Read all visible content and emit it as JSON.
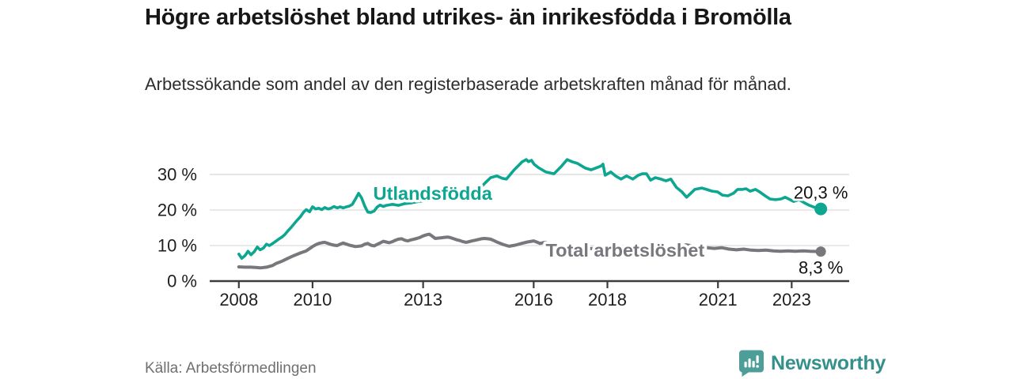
{
  "header": {
    "title": "Högre arbetslöshet bland utrikes- än inrikesfödda i Bromölla",
    "subtitle": "Arbetssökande som andel av den registerbaserade arbetskraften månad för månad."
  },
  "footer": {
    "source": "Källa: Arbetsförmedlingen",
    "brand": "Newsworthy"
  },
  "colors": {
    "accent_teal": "#0da691",
    "line_gray": "#77777c",
    "grid": "#dcdcdc",
    "axis": "#3c3c3c",
    "tick_text": "#1f1f1f",
    "value_label": "#111111",
    "brand_icon_teal": "#4d9e99",
    "brand_text_teal": "#35908c"
  },
  "chart_data": {
    "type": "line",
    "unit": "%",
    "x_range": [
      2007.21,
      2024.56
    ],
    "y_range": [
      0,
      37.1
    ],
    "grid": true,
    "legend_position": "inline-labels",
    "y_ticks": [
      {
        "value": 0,
        "label": "0 %"
      },
      {
        "value": 10,
        "label": "10 %"
      },
      {
        "value": 20,
        "label": "20 %"
      },
      {
        "value": 30,
        "label": "30 %"
      }
    ],
    "x_ticks": [
      {
        "value": 2008,
        "label": "2008"
      },
      {
        "value": 2010,
        "label": "2010"
      },
      {
        "value": 2013,
        "label": "2013"
      },
      {
        "value": 2016,
        "label": "2016"
      },
      {
        "value": 2018,
        "label": "2018"
      },
      {
        "value": 2021,
        "label": "2021"
      },
      {
        "value": 2023,
        "label": "2023"
      }
    ],
    "series": [
      {
        "name": "Utlandsfödda",
        "color": "#0da691",
        "stroke_width": 3.6,
        "end_label": "20,3 %",
        "end_label_side": "above",
        "label_pos": [
          2013.26,
          22.9
        ],
        "points": [
          [
            2008.0,
            7.6
          ],
          [
            2008.08,
            6.4
          ],
          [
            2008.17,
            7.2
          ],
          [
            2008.25,
            8.4
          ],
          [
            2008.33,
            7.4
          ],
          [
            2008.42,
            8.3
          ],
          [
            2008.5,
            9.6
          ],
          [
            2008.58,
            8.8
          ],
          [
            2008.67,
            9.3
          ],
          [
            2008.75,
            10.4
          ],
          [
            2008.83,
            10.0
          ],
          [
            2008.92,
            10.6
          ],
          [
            2009.0,
            11.2
          ],
          [
            2009.08,
            11.8
          ],
          [
            2009.17,
            12.4
          ],
          [
            2009.25,
            13.1
          ],
          [
            2009.33,
            14.1
          ],
          [
            2009.42,
            15.1
          ],
          [
            2009.5,
            16.1
          ],
          [
            2009.58,
            17.1
          ],
          [
            2009.67,
            18.1
          ],
          [
            2009.75,
            19.3
          ],
          [
            2009.83,
            20.1
          ],
          [
            2009.92,
            19.5
          ],
          [
            2010.0,
            20.9
          ],
          [
            2010.08,
            20.3
          ],
          [
            2010.17,
            20.5
          ],
          [
            2010.25,
            20.1
          ],
          [
            2010.33,
            20.7
          ],
          [
            2010.42,
            20.3
          ],
          [
            2010.5,
            20.5
          ],
          [
            2010.58,
            21.0
          ],
          [
            2010.67,
            20.6
          ],
          [
            2010.75,
            20.9
          ],
          [
            2010.83,
            20.6
          ],
          [
            2010.92,
            20.9
          ],
          [
            2011.0,
            21.1
          ],
          [
            2011.08,
            21.6
          ],
          [
            2011.17,
            23.2
          ],
          [
            2011.25,
            24.7
          ],
          [
            2011.33,
            23.4
          ],
          [
            2011.42,
            21.0
          ],
          [
            2011.5,
            19.4
          ],
          [
            2011.58,
            19.3
          ],
          [
            2011.67,
            19.7
          ],
          [
            2011.75,
            20.8
          ],
          [
            2011.83,
            21.4
          ],
          [
            2011.92,
            21.0
          ],
          [
            2012.0,
            21.3
          ],
          [
            2012.17,
            21.6
          ],
          [
            2012.33,
            21.3
          ],
          [
            2012.5,
            21.8
          ],
          [
            2012.67,
            22.0
          ],
          [
            2012.83,
            22.3
          ],
          [
            2013.0,
            22.6
          ],
          [
            2013.25,
            22.9
          ],
          [
            2013.5,
            23.3
          ],
          [
            2013.75,
            23.9
          ],
          [
            2014.0,
            24.4
          ],
          [
            2014.25,
            24.9
          ],
          [
            2014.55,
            26.2
          ],
          [
            2014.7,
            27.8
          ],
          [
            2014.83,
            29.1
          ],
          [
            2015.0,
            29.6
          ],
          [
            2015.15,
            28.9
          ],
          [
            2015.26,
            28.7
          ],
          [
            2015.47,
            31.3
          ],
          [
            2015.69,
            33.6
          ],
          [
            2015.8,
            34.2
          ],
          [
            2015.86,
            33.6
          ],
          [
            2015.94,
            34.0
          ],
          [
            2016.01,
            32.9
          ],
          [
            2016.12,
            32.0
          ],
          [
            2016.33,
            30.7
          ],
          [
            2016.55,
            30.2
          ],
          [
            2016.76,
            32.4
          ],
          [
            2016.91,
            34.2
          ],
          [
            2017.04,
            33.6
          ],
          [
            2017.19,
            33.1
          ],
          [
            2017.4,
            31.8
          ],
          [
            2017.56,
            31.3
          ],
          [
            2017.68,
            31.8
          ],
          [
            2017.83,
            32.4
          ],
          [
            2017.88,
            32.9
          ],
          [
            2017.94,
            29.8
          ],
          [
            2018.09,
            30.7
          ],
          [
            2018.22,
            29.6
          ],
          [
            2018.37,
            28.7
          ],
          [
            2018.52,
            29.6
          ],
          [
            2018.69,
            28.7
          ],
          [
            2018.84,
            29.8
          ],
          [
            2018.95,
            30.2
          ],
          [
            2019.06,
            30.2
          ],
          [
            2019.17,
            28.4
          ],
          [
            2019.3,
            29.1
          ],
          [
            2019.45,
            28.7
          ],
          [
            2019.59,
            28.2
          ],
          [
            2019.72,
            28.7
          ],
          [
            2019.87,
            26.4
          ],
          [
            2020.02,
            25.1
          ],
          [
            2020.15,
            23.6
          ],
          [
            2020.37,
            25.8
          ],
          [
            2020.56,
            26.2
          ],
          [
            2020.69,
            25.8
          ],
          [
            2020.84,
            25.3
          ],
          [
            2020.99,
            25.1
          ],
          [
            2021.12,
            24.2
          ],
          [
            2021.27,
            24.0
          ],
          [
            2021.42,
            24.7
          ],
          [
            2021.53,
            25.8
          ],
          [
            2021.66,
            25.8
          ],
          [
            2021.76,
            26.0
          ],
          [
            2021.87,
            25.3
          ],
          [
            2022.02,
            25.8
          ],
          [
            2022.13,
            25.1
          ],
          [
            2022.28,
            24.0
          ],
          [
            2022.41,
            23.1
          ],
          [
            2022.56,
            22.9
          ],
          [
            2022.71,
            23.1
          ],
          [
            2022.82,
            23.6
          ],
          [
            2022.92,
            23.1
          ],
          [
            2023.05,
            22.4
          ],
          [
            2023.2,
            22.9
          ],
          [
            2023.35,
            22.0
          ],
          [
            2023.48,
            21.3
          ],
          [
            2023.63,
            20.7
          ],
          [
            2023.79,
            20.3
          ]
        ]
      },
      {
        "name": "Total arbetslöshet",
        "color": "#77777c",
        "stroke_width": 4,
        "end_label": "8,3 %",
        "end_label_side": "below",
        "label_pos": [
          2018.48,
          6.9
        ],
        "points": [
          [
            2008.0,
            4.0
          ],
          [
            2008.17,
            3.9
          ],
          [
            2008.33,
            3.9
          ],
          [
            2008.5,
            3.8
          ],
          [
            2008.58,
            3.7
          ],
          [
            2008.75,
            3.9
          ],
          [
            2008.92,
            4.4
          ],
          [
            2009.0,
            4.9
          ],
          [
            2009.17,
            5.6
          ],
          [
            2009.33,
            6.4
          ],
          [
            2009.5,
            7.2
          ],
          [
            2009.67,
            7.9
          ],
          [
            2009.83,
            8.5
          ],
          [
            2010.0,
            9.7
          ],
          [
            2010.08,
            10.2
          ],
          [
            2010.17,
            10.6
          ],
          [
            2010.25,
            10.8
          ],
          [
            2010.33,
            10.9
          ],
          [
            2010.42,
            10.6
          ],
          [
            2010.5,
            10.3
          ],
          [
            2010.58,
            10.1
          ],
          [
            2010.67,
            10.0
          ],
          [
            2010.75,
            10.4
          ],
          [
            2010.83,
            10.7
          ],
          [
            2010.92,
            10.4
          ],
          [
            2011.0,
            10.1
          ],
          [
            2011.17,
            9.7
          ],
          [
            2011.33,
            9.9
          ],
          [
            2011.42,
            10.4
          ],
          [
            2011.5,
            10.6
          ],
          [
            2011.58,
            10.1
          ],
          [
            2011.67,
            9.9
          ],
          [
            2011.75,
            10.3
          ],
          [
            2011.83,
            10.7
          ],
          [
            2011.92,
            11.2
          ],
          [
            2012.0,
            11.0
          ],
          [
            2012.08,
            10.8
          ],
          [
            2012.17,
            11.1
          ],
          [
            2012.25,
            11.5
          ],
          [
            2012.33,
            11.8
          ],
          [
            2012.42,
            11.9
          ],
          [
            2012.5,
            11.5
          ],
          [
            2012.58,
            11.3
          ],
          [
            2012.67,
            11.6
          ],
          [
            2012.75,
            11.8
          ],
          [
            2012.83,
            12.0
          ],
          [
            2012.92,
            12.3
          ],
          [
            2013.0,
            12.7
          ],
          [
            2013.08,
            13.0
          ],
          [
            2013.17,
            13.2
          ],
          [
            2013.25,
            12.6
          ],
          [
            2013.33,
            12.0
          ],
          [
            2013.42,
            12.1
          ],
          [
            2013.5,
            12.2
          ],
          [
            2013.58,
            12.3
          ],
          [
            2013.67,
            12.4
          ],
          [
            2013.75,
            12.2
          ],
          [
            2013.83,
            11.9
          ],
          [
            2013.92,
            11.6
          ],
          [
            2014.0,
            11.4
          ],
          [
            2014.08,
            11.1
          ],
          [
            2014.17,
            10.9
          ],
          [
            2014.25,
            11.1
          ],
          [
            2014.33,
            11.3
          ],
          [
            2014.42,
            11.5
          ],
          [
            2014.5,
            11.7
          ],
          [
            2014.58,
            11.9
          ],
          [
            2014.67,
            12.0
          ],
          [
            2014.75,
            11.9
          ],
          [
            2014.83,
            11.8
          ],
          [
            2014.92,
            11.4
          ],
          [
            2015.0,
            11.0
          ],
          [
            2015.17,
            10.3
          ],
          [
            2015.33,
            9.8
          ],
          [
            2015.5,
            10.1
          ],
          [
            2015.67,
            10.6
          ],
          [
            2015.83,
            11.0
          ],
          [
            2016.0,
            11.3
          ],
          [
            2016.08,
            11.0
          ],
          [
            2016.17,
            10.6
          ],
          [
            2016.25,
            10.8
          ],
          [
            2016.33,
            10.9
          ],
          [
            2016.42,
            10.5
          ],
          [
            2016.5,
            10.2
          ],
          [
            2016.58,
            9.9
          ],
          [
            2016.67,
            9.8
          ],
          [
            2016.83,
            9.7
          ],
          [
            2017.0,
            9.6
          ],
          [
            2017.25,
            9.4
          ],
          [
            2017.5,
            9.2
          ],
          [
            2017.75,
            9.1
          ],
          [
            2018.0,
            9.0
          ],
          [
            2018.25,
            8.8
          ],
          [
            2018.5,
            8.7
          ],
          [
            2018.75,
            8.6
          ],
          [
            2019.0,
            8.5
          ],
          [
            2019.25,
            8.6
          ],
          [
            2019.5,
            8.8
          ],
          [
            2019.75,
            9.1
          ],
          [
            2019.92,
            9.5
          ],
          [
            2020.13,
            10.2
          ],
          [
            2020.3,
            9.9
          ],
          [
            2020.5,
            9.6
          ],
          [
            2020.7,
            9.4
          ],
          [
            2020.9,
            9.2
          ],
          [
            2021.1,
            9.4
          ],
          [
            2021.3,
            9.0
          ],
          [
            2021.5,
            8.8
          ],
          [
            2021.7,
            9.0
          ],
          [
            2021.9,
            8.7
          ],
          [
            2022.1,
            8.6
          ],
          [
            2022.3,
            8.7
          ],
          [
            2022.5,
            8.5
          ],
          [
            2022.7,
            8.4
          ],
          [
            2022.9,
            8.5
          ],
          [
            2023.1,
            8.4
          ],
          [
            2023.3,
            8.5
          ],
          [
            2023.5,
            8.4
          ],
          [
            2023.79,
            8.3
          ]
        ]
      }
    ]
  }
}
